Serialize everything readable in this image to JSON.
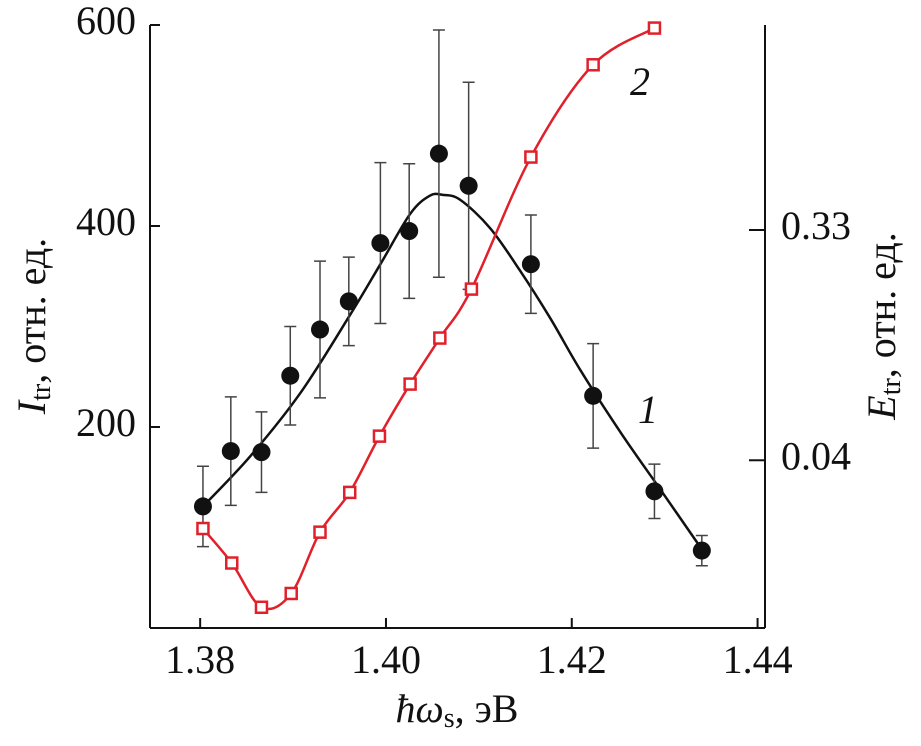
{
  "chart_data": {
    "type": "scatter",
    "xlabel": {
      "symbol": "ħω",
      "sub": "s",
      "rest": ", эВ"
    },
    "ylabel": {
      "symbol": "I",
      "sub": "tr",
      "rest": ", отн. ед."
    },
    "y2label": {
      "symbol": "E",
      "sub": "tr",
      "rest": ", отн. ед."
    },
    "xlim": [
      1.3746,
      1.4408
    ],
    "xticks": [
      {
        "value": 1.38,
        "label": "1.38"
      },
      {
        "value": 1.4,
        "label": "1.40"
      },
      {
        "value": 1.42,
        "label": "1.42"
      },
      {
        "value": 1.44,
        "label": "1.44"
      }
    ],
    "ylim": [
      0,
      600
    ],
    "yticks": [
      200,
      400,
      600
    ],
    "y2lim": [
      0.0086,
      2.16
    ],
    "y2ticks": [
      0.04,
      0.33
    ],
    "y2log": true,
    "series": [
      {
        "name": "1",
        "color": "#111111",
        "axis": "y",
        "x": [
          1.3803,
          1.3833,
          1.3866,
          1.3897,
          1.3929,
          1.396,
          1.3994,
          1.4025,
          1.4057,
          1.4089,
          1.4156,
          1.4223,
          1.4289,
          1.434
        ],
        "values": [
          121,
          176,
          175,
          251,
          297,
          325,
          383,
          395,
          472,
          440,
          362,
          231,
          136,
          77
        ],
        "errors": [
          40,
          54,
          40,
          49,
          68,
          44,
          80,
          67,
          123,
          103,
          49,
          52,
          27,
          15
        ],
        "fit_x": [
          1.3803,
          1.3854,
          1.3908,
          1.3961,
          1.3994,
          1.4026,
          1.4047,
          1.4061,
          1.408,
          1.4112,
          1.4144,
          1.4177,
          1.4209,
          1.4253,
          1.4296,
          1.4341
        ],
        "fit_values": [
          121,
          171,
          234,
          311,
          362,
          412,
          430,
          431,
          426,
          398,
          356,
          308,
          257,
          194,
          137,
          77
        ]
      },
      {
        "name": "2",
        "color": "#e0202a",
        "axis": "y2",
        "x": [
          1.3803,
          1.3834,
          1.3866,
          1.3898,
          1.3929,
          1.3961,
          1.3993,
          1.4026,
          1.4058,
          1.4092,
          1.4156,
          1.4223,
          1.4289
        ],
        "values": [
          0.0214,
          0.0156,
          0.0104,
          0.0118,
          0.0207,
          0.0298,
          0.0499,
          0.0804,
          0.1226,
          0.192,
          0.644,
          1.5,
          2.1
        ]
      }
    ]
  }
}
